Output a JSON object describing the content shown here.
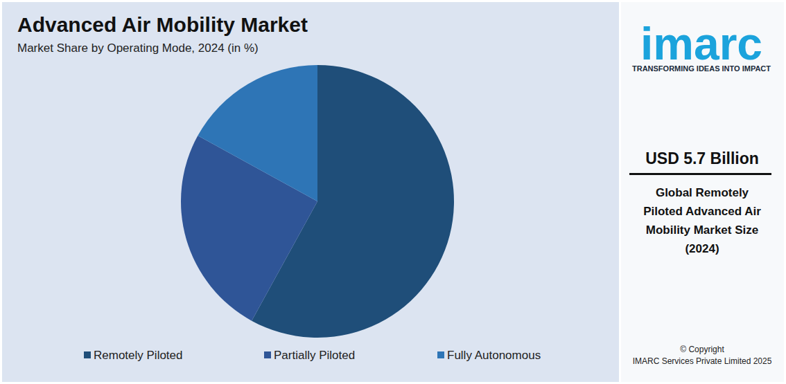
{
  "chart_data": {
    "type": "pie",
    "title": "Advanced Air Mobility Market",
    "subtitle": "Market Share by Operating Mode, 2024 (in %)",
    "categories": [
      "Remotely Piloted",
      "Partially Piloted",
      "Fully Autonomous"
    ],
    "values": [
      58,
      25,
      17
    ],
    "colors": [
      "#1f4e79",
      "#2f5597",
      "#2e75b6"
    ],
    "legend": "bottom"
  },
  "panel": {
    "logo": "imarc",
    "tagline": "TRANSFORMING IDEAS INTO IMPACT",
    "headline": "USD 5.7 Billion",
    "description": [
      "Global Remotely",
      "Piloted Advanced Air",
      "Mobility Market Size",
      "(2024)"
    ],
    "copyright": [
      "© Copyright",
      "IMARC Services Private Limited 2025"
    ]
  }
}
